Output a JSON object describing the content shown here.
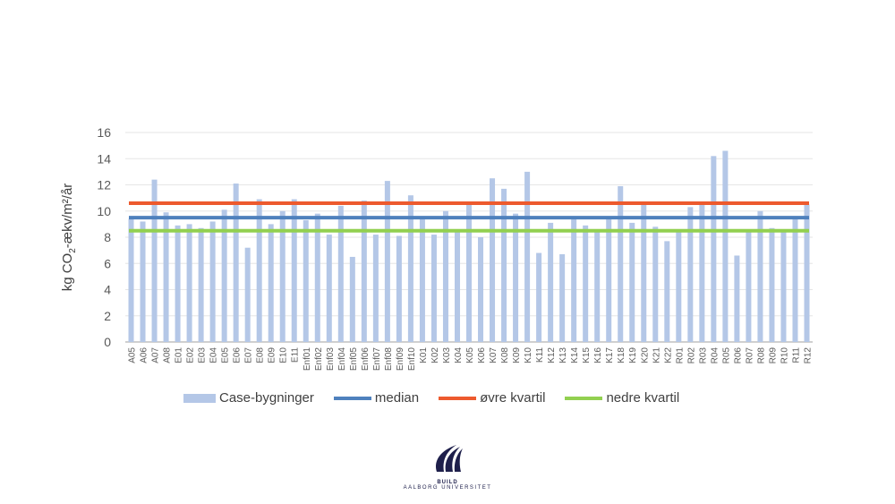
{
  "chart_data": {
    "type": "bar",
    "title": "",
    "xlabel": "",
    "ylabel": "kg CO2-ækv/m²/år",
    "ylim": [
      0,
      16
    ],
    "yticks": [
      0,
      2,
      4,
      6,
      8,
      10,
      12,
      14,
      16
    ],
    "grid": true,
    "legend_position": "bottom",
    "categories": [
      "A05",
      "A06",
      "A07",
      "A08",
      "E01",
      "E02",
      "E03",
      "E04",
      "E05",
      "E06",
      "E07",
      "E08",
      "E09",
      "E10",
      "E11",
      "Enf01",
      "Enf02",
      "Enf03",
      "Enf04",
      "Enf05",
      "Enf06",
      "Enf07",
      "Enf08",
      "Enf09",
      "Enf10",
      "K01",
      "K02",
      "K03",
      "K04",
      "K05",
      "K06",
      "K07",
      "K08",
      "K09",
      "K10",
      "K11",
      "K12",
      "K13",
      "K14",
      "K15",
      "K16",
      "K17",
      "K18",
      "K19",
      "K20",
      "K21",
      "K22",
      "R01",
      "R02",
      "R03",
      "R04",
      "R05",
      "R06",
      "R07",
      "R08",
      "R09",
      "R10",
      "R11",
      "R12"
    ],
    "series": [
      {
        "name": "Case-bygninger",
        "type": "bar",
        "color": "#b4c7e7",
        "values": [
          9.4,
          9.2,
          12.4,
          9.9,
          8.9,
          9.0,
          8.7,
          9.2,
          10.1,
          12.1,
          7.2,
          10.9,
          9.0,
          10.0,
          10.9,
          9.3,
          9.8,
          8.2,
          10.4,
          6.5,
          10.8,
          8.2,
          12.3,
          8.1,
          11.2,
          9.5,
          8.2,
          10.0,
          8.4,
          10.5,
          8.0,
          12.5,
          11.7,
          9.8,
          13.0,
          6.8,
          9.1,
          6.7,
          9.5,
          8.9,
          8.5,
          9.5,
          11.9,
          9.1,
          10.5,
          8.8,
          7.7,
          8.5,
          10.3,
          10.5,
          14.2,
          14.6,
          6.6,
          8.5,
          10.0,
          8.7,
          8.5,
          9.6,
          10.5
        ]
      },
      {
        "name": "median",
        "type": "line",
        "color": "#4f81bd",
        "value": 9.5
      },
      {
        "name": "øvre kvartil",
        "type": "line",
        "color": "#ed5a2e",
        "value": 10.6
      },
      {
        "name": "nedre kvartil",
        "type": "line",
        "color": "#92d050",
        "value": 8.5
      }
    ]
  },
  "logo": {
    "line1": "BUILD",
    "line2": "AALBORG UNIVERSITET"
  }
}
